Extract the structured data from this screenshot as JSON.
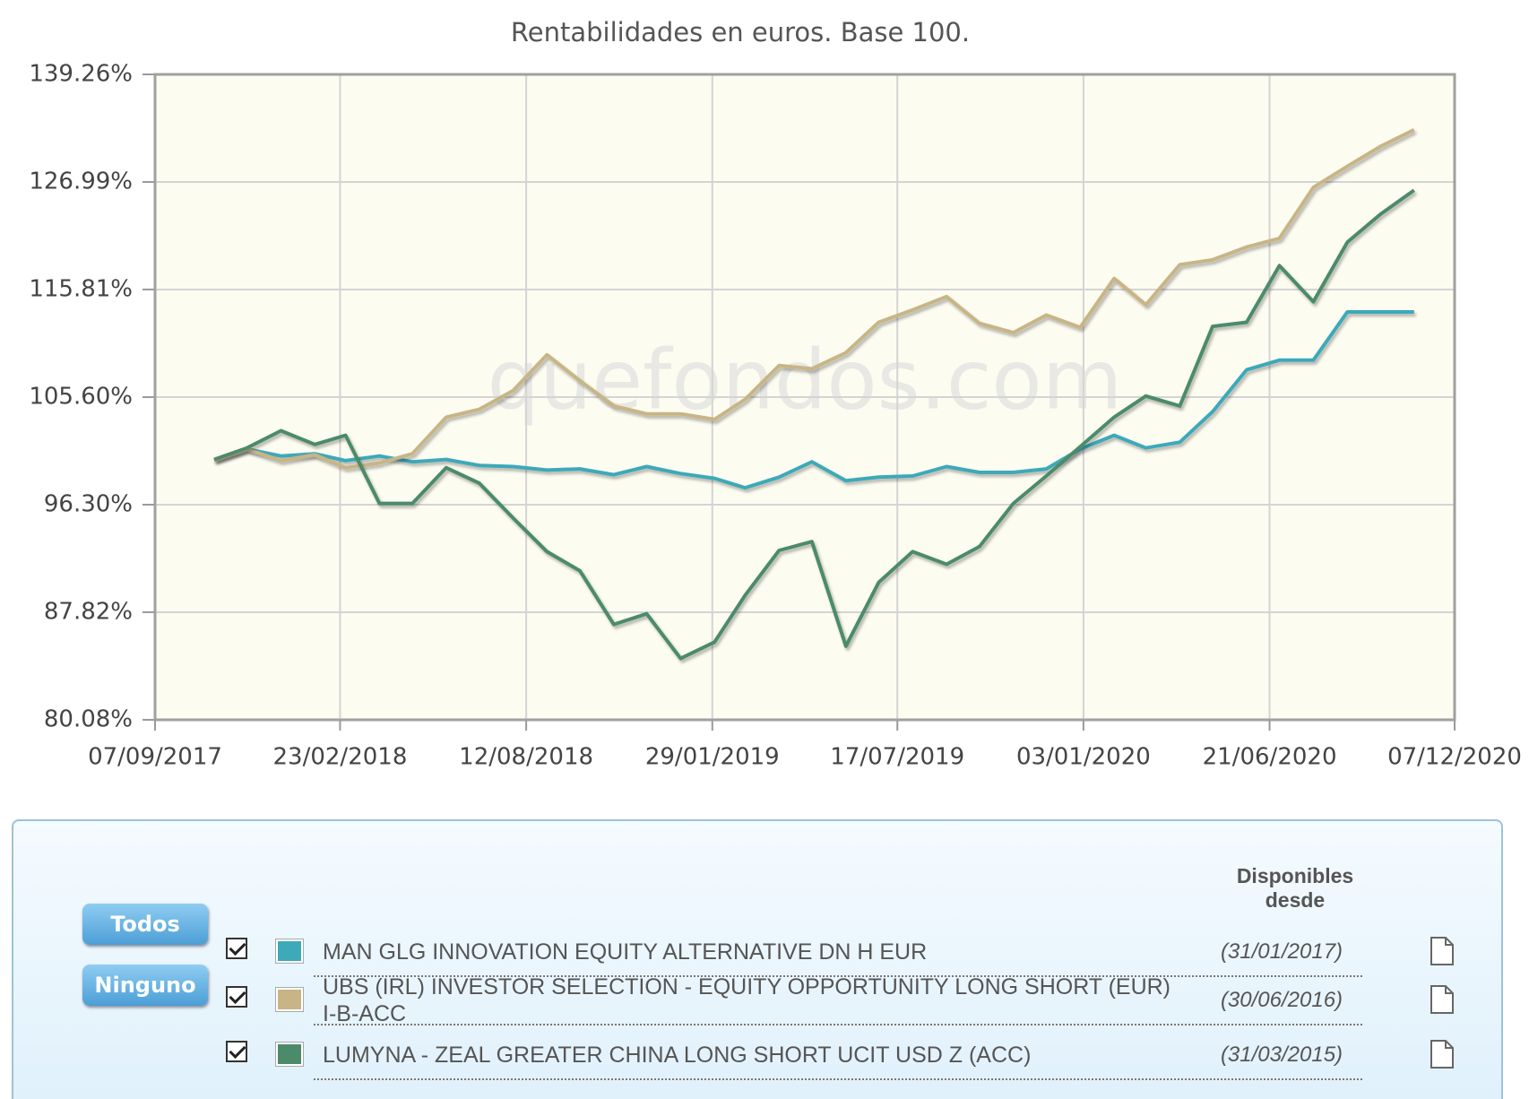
{
  "chart_data": {
    "type": "line",
    "title": "Rentabilidades en euros. Base 100.",
    "watermark": "quefondos.com",
    "log": true,
    "grid": true,
    "x": [
      "2017-10-31",
      "2017-11-30",
      "2017-12-31",
      "2018-01-31",
      "2018-02-28",
      "2018-03-31",
      "2018-04-30",
      "2018-05-31",
      "2018-06-30",
      "2018-07-31",
      "2018-08-31",
      "2018-09-30",
      "2018-10-31",
      "2018-11-30",
      "2018-12-31",
      "2019-01-31",
      "2019-02-28",
      "2019-03-31",
      "2019-04-30",
      "2019-05-31",
      "2019-06-30",
      "2019-07-31",
      "2019-08-31",
      "2019-09-30",
      "2019-10-31",
      "2019-11-30",
      "2019-12-31",
      "2020-01-31",
      "2020-02-29",
      "2020-03-31",
      "2020-04-30",
      "2020-05-31",
      "2020-06-30",
      "2020-07-31",
      "2020-08-31",
      "2020-09-30",
      "2020-10-31"
    ],
    "xlim": [
      "2017-09-07",
      "2020-12-07"
    ],
    "xticks": [
      {
        "value": "2017-09-07",
        "label": "07/09/2017"
      },
      {
        "value": "2018-02-23",
        "label": "23/02/2018"
      },
      {
        "value": "2018-08-12",
        "label": "12/08/2018"
      },
      {
        "value": "2019-01-29",
        "label": "29/01/2019"
      },
      {
        "value": "2019-07-17",
        "label": "17/07/2019"
      },
      {
        "value": "2020-01-03",
        "label": "03/01/2020"
      },
      {
        "value": "2020-06-21",
        "label": "21/06/2020"
      },
      {
        "value": "2020-12-07",
        "label": "07/12/2020"
      }
    ],
    "ylim": [
      80.08,
      139.26
    ],
    "yticks": [
      {
        "value": 80.08,
        "label": "80.08%"
      },
      {
        "value": 87.82,
        "label": "87.82%"
      },
      {
        "value": 96.3,
        "label": "96.30%"
      },
      {
        "value": 105.6,
        "label": "105.60%"
      },
      {
        "value": 115.81,
        "label": "115.81%"
      },
      {
        "value": 126.99,
        "label": "126.99%"
      },
      {
        "value": 139.26,
        "label": "139.26%"
      }
    ],
    "series": [
      {
        "name": "MAN GLG INNOVATION EQUITY ALTERNATIVE DN H EUR",
        "color": "#3ea9b9",
        "values": [
          100.1,
          101.0,
          100.4,
          100.6,
          100.0,
          100.4,
          99.9,
          100.1,
          99.6,
          99.5,
          99.2,
          99.3,
          98.8,
          99.5,
          98.9,
          98.5,
          97.7,
          98.6,
          99.9,
          98.3,
          98.6,
          98.7,
          99.5,
          99.0,
          99.0,
          99.3,
          101.0,
          102.2,
          101.1,
          101.6,
          104.3,
          108.1,
          109.0,
          109.0,
          113.6,
          113.6,
          113.6
        ]
      },
      {
        "name": "UBS (IRL) INVESTOR SELECTION - EQUITY OPPORTUNITY LONG SHORT (EUR) I-B-ACC",
        "color": "#c8b585",
        "values": [
          100.0,
          101.0,
          100.0,
          100.5,
          99.4,
          99.8,
          100.6,
          103.8,
          104.5,
          106.2,
          109.5,
          107.1,
          104.8,
          104.1,
          104.1,
          103.6,
          105.4,
          108.5,
          108.2,
          109.7,
          112.6,
          113.8,
          115.1,
          112.5,
          111.6,
          113.3,
          112.1,
          116.9,
          114.3,
          118.3,
          118.8,
          120.1,
          121.0,
          126.4,
          128.7,
          130.9,
          132.8
        ]
      },
      {
        "name": "LUMYNA - ZEAL GREATER CHINA LONG SHORT UCIT USD Z (ACC)",
        "color": "#4b8b69",
        "values": [
          100.1,
          101.1,
          102.6,
          101.4,
          102.2,
          96.4,
          96.4,
          99.4,
          98.1,
          95.2,
          92.5,
          91.0,
          86.9,
          87.7,
          84.4,
          85.6,
          89.1,
          92.6,
          93.3,
          85.3,
          90.1,
          92.5,
          91.5,
          92.9,
          96.4,
          98.7,
          101.2,
          103.8,
          105.7,
          104.8,
          112.2,
          112.6,
          118.2,
          114.6,
          120.6,
          123.5,
          126.1
        ]
      }
    ],
    "legend_panel": {
      "buttons": [
        "Todos",
        "Ninguno"
      ],
      "header": "Disponibles desde",
      "dates": [
        "(31/01/2017)",
        "(30/06/2016)",
        "(31/03/2015)"
      ]
    }
  }
}
